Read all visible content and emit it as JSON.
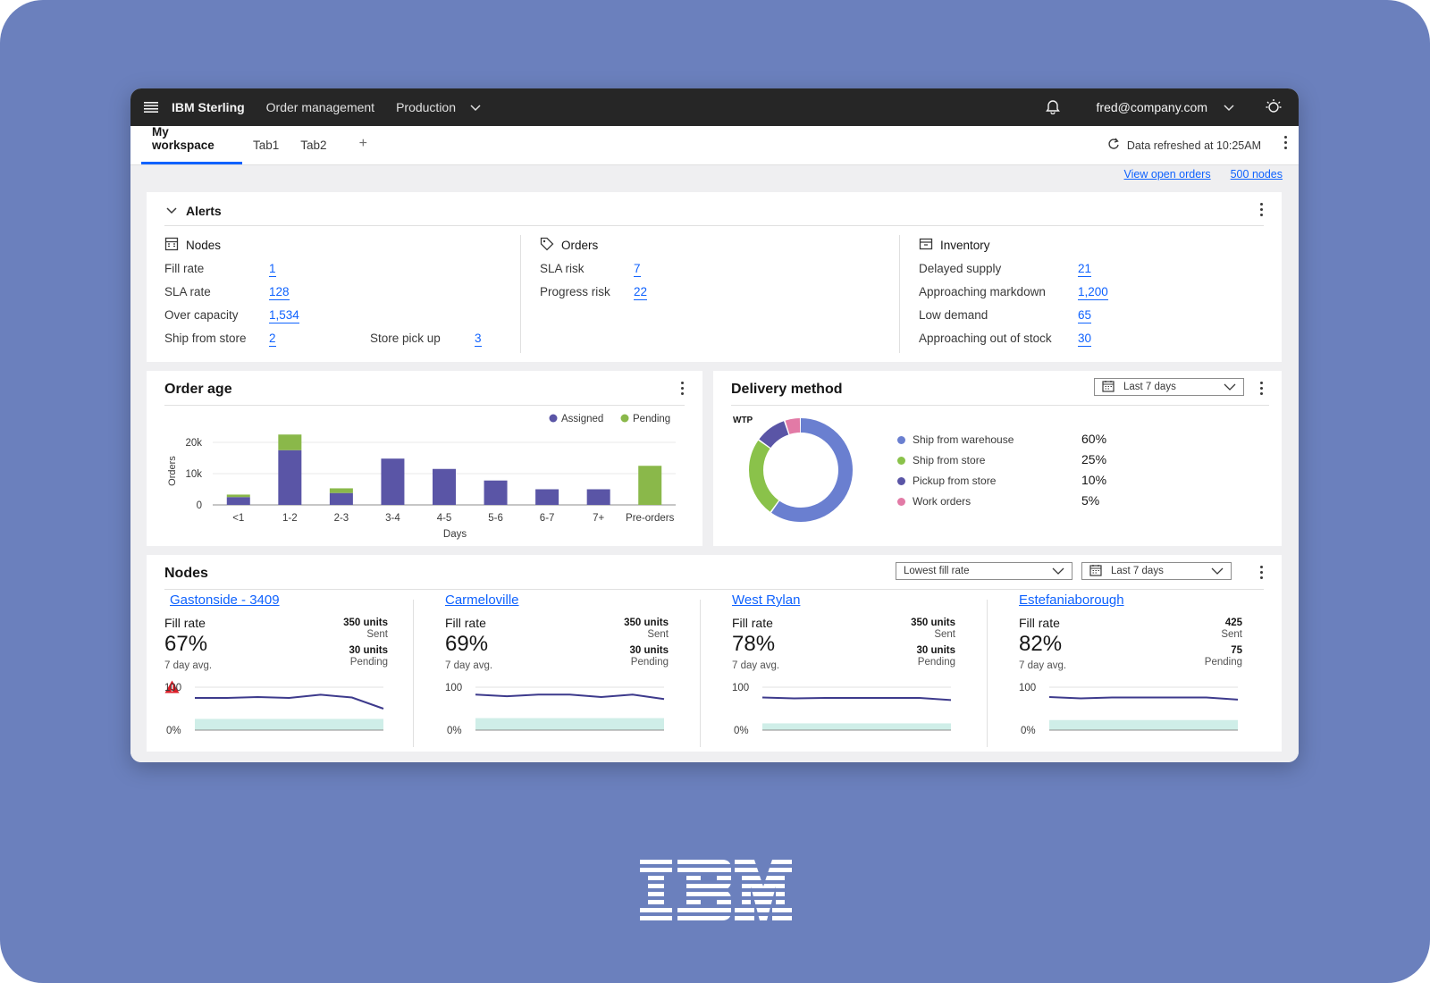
{
  "topbar": {
    "brand": "IBM Sterling",
    "nav": [
      "Order management",
      "Production"
    ],
    "user": "fred@company.com"
  },
  "tabs": {
    "items": [
      "My workspace",
      "Tab1",
      "Tab2"
    ],
    "add_label": "+",
    "refresh_text": "Data refreshed at 10:25AM"
  },
  "links": {
    "view_open_orders": "View open orders",
    "nodes_count": "500 nodes"
  },
  "alerts": {
    "title": "Alerts",
    "nodes": {
      "title": "Nodes",
      "fill_rate_label": "Fill rate",
      "fill_rate": "1",
      "sla_rate_label": "SLA rate",
      "sla_rate": "128",
      "over_capacity_label": "Over capacity",
      "over_capacity": "1,534",
      "ship_from_store_label": "Ship from store",
      "ship_from_store": "2",
      "store_pick_up_label": "Store pick up",
      "store_pick_up": "3"
    },
    "orders": {
      "title": "Orders",
      "sla_risk_label": "SLA risk",
      "sla_risk": "7",
      "progress_risk_label": "Progress risk",
      "progress_risk": "22"
    },
    "inventory": {
      "title": "Inventory",
      "delayed_supply_label": "Delayed supply",
      "delayed_supply": "21",
      "approaching_markdown_label": "Approaching markdown",
      "approaching_markdown": "1,200",
      "low_demand_label": "Low demand",
      "low_demand": "65",
      "approaching_out_label": "Approaching out of stock",
      "approaching_out": "30"
    }
  },
  "order_age": {
    "title": "Order age",
    "chart_data": {
      "type": "bar",
      "stacked": true,
      "categories": [
        "<1",
        "1-2",
        "2-3",
        "3-4",
        "4-5",
        "5-6",
        "6-7",
        "7+",
        "Pre-orders"
      ],
      "series": [
        {
          "name": "Assigned",
          "color": "#5a55a6",
          "values": [
            2500,
            17500,
            3800,
            14800,
            11500,
            7800,
            5000,
            5000,
            0
          ]
        },
        {
          "name": "Pending",
          "color": "#8ab84a",
          "values": [
            800,
            5000,
            1500,
            0,
            0,
            0,
            0,
            0,
            12500
          ]
        }
      ],
      "xlabel": "Days",
      "ylabel": "Orders",
      "yticks": [
        "20k",
        "10k",
        "0"
      ],
      "ylim": [
        0,
        23000
      ]
    }
  },
  "delivery": {
    "title": "Delivery method",
    "range": "Last 7 days",
    "wip_label": "WTP",
    "chart_data": {
      "type": "pie",
      "donut": true,
      "slices": [
        {
          "label": "Ship from warehouse",
          "value": 60,
          "pct": "60%",
          "color": "#6a7fd0"
        },
        {
          "label": "Ship from store",
          "value": 25,
          "pct": "25%",
          "color": "#8ac24a"
        },
        {
          "label": "Pickup from store",
          "value": 10,
          "pct": "10%",
          "color": "#5a55a6"
        },
        {
          "label": "Work orders",
          "value": 5,
          "pct": "5%",
          "color": "#e27aa6"
        }
      ]
    }
  },
  "nodes_panel": {
    "title": "Nodes",
    "sort": "Lowest fill rate",
    "range": "Last 7 days",
    "fill_rate_label": "Fill rate",
    "avg_label": "7 day avg.",
    "sent_label": "Sent",
    "pending_label": "Pending",
    "axis_top": "100",
    "axis_bottom": "0%",
    "items": [
      {
        "name": "Gastonside - 3409",
        "warn": true,
        "fill": "67%",
        "sent": "350 units",
        "pending": "30 units",
        "line": [
          80,
          80,
          84,
          80,
          95,
          82,
          30
        ],
        "area": 58
      },
      {
        "name": "Carmeloville",
        "warn": false,
        "fill": "69%",
        "sent": "350 units",
        "pending": "30 units",
        "line": [
          96,
          88,
          96,
          96,
          84,
          96,
          75
        ],
        "area": 62
      },
      {
        "name": "West Rylan",
        "warn": false,
        "fill": "78%",
        "sent": "350 units",
        "pending": "30 units",
        "line": [
          82,
          78,
          80,
          80,
          80,
          80,
          70
        ],
        "area": 35
      },
      {
        "name": "Estefaniaborough",
        "warn": false,
        "fill": "82%",
        "sent": "425",
        "pending": "75",
        "line": [
          84,
          78,
          82,
          82,
          82,
          82,
          72
        ],
        "area": 52
      }
    ]
  },
  "colors": {
    "background": "#6b80bd",
    "accent": "#0f62fe",
    "topbar": "#262626",
    "area_fill": "#cfeee8",
    "warn": "#da1e28"
  }
}
